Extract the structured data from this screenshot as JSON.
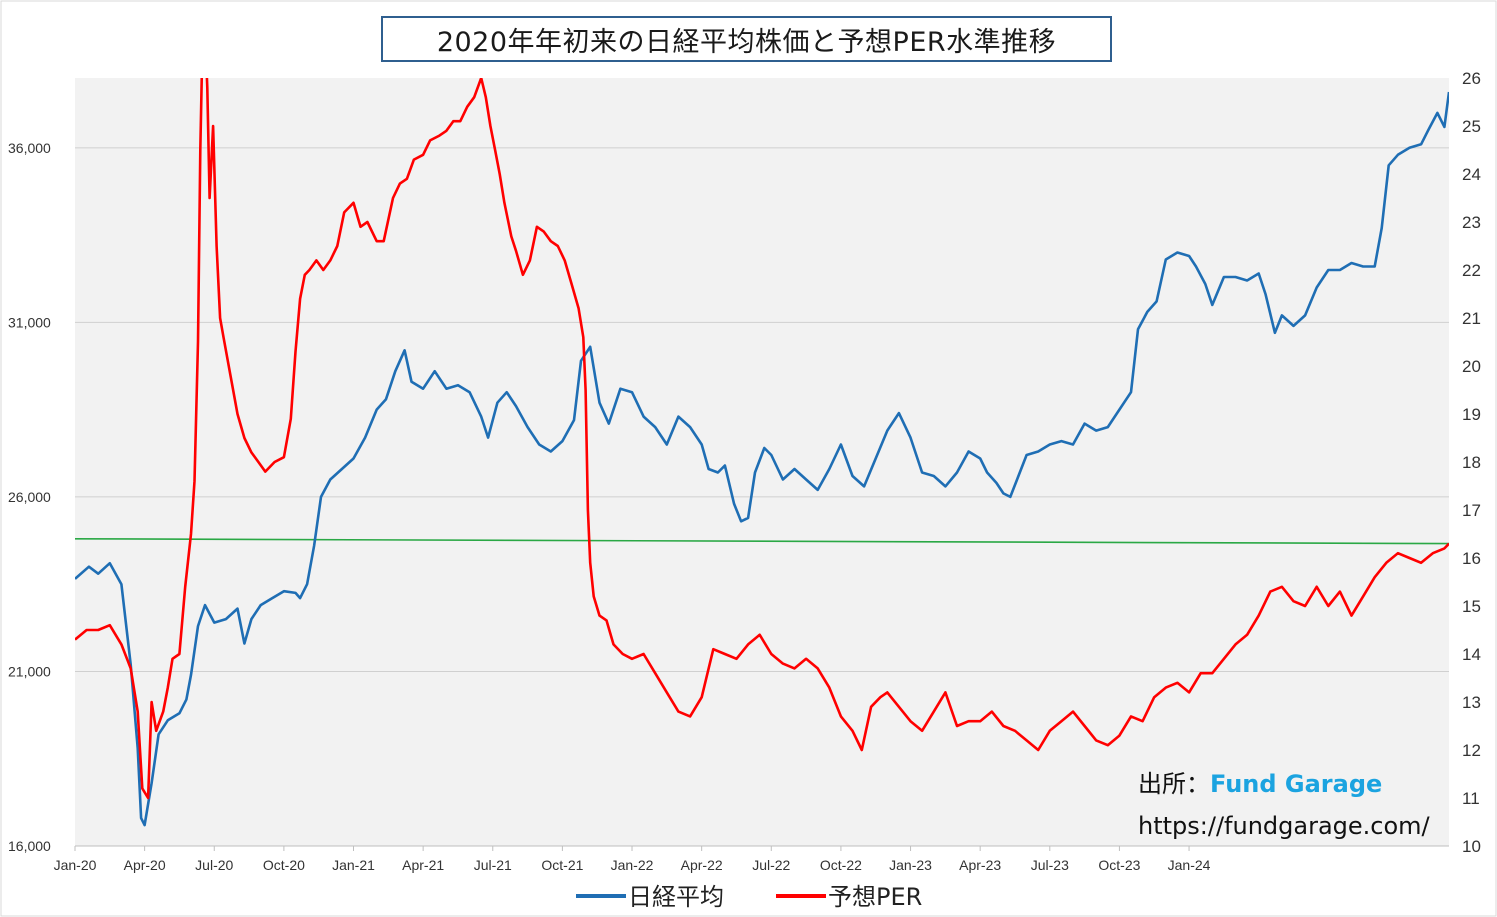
{
  "chart_data": {
    "type": "line",
    "title": "2020年年初来の日経平均株価と予想PER水準推移",
    "x_ticks": [
      "Jan-20",
      "Apr-20",
      "Jul-20",
      "Oct-20",
      "Jan-21",
      "Apr-21",
      "Jul-21",
      "Oct-21",
      "Jan-22",
      "Apr-22",
      "Jul-22",
      "Oct-22",
      "Jan-23",
      "Apr-23",
      "Jul-23",
      "Oct-23",
      "Jan-24"
    ],
    "y_left": {
      "min": 16000,
      "max": 38000,
      "ticks": [
        "16,000",
        "21,000",
        "26,000",
        "31,000",
        "36,000"
      ],
      "tick_values": [
        16000,
        21000,
        26000,
        31000,
        36000
      ]
    },
    "y_right": {
      "min": 10,
      "max": 26,
      "ticks": [
        "10",
        "11",
        "12",
        "13",
        "14",
        "15",
        "16",
        "17",
        "18",
        "19",
        "20",
        "21",
        "22",
        "23",
        "24",
        "25",
        "26"
      ],
      "tick_values": [
        10,
        11,
        12,
        13,
        14,
        15,
        16,
        17,
        18,
        19,
        20,
        21,
        22,
        23,
        24,
        25,
        26
      ]
    },
    "series": [
      {
        "name": "日経平均",
        "axis": "left",
        "color": "#1f6eb4",
        "points": [
          [
            0,
            23650
          ],
          [
            0.6,
            24000
          ],
          [
            1,
            23800
          ],
          [
            1.5,
            24100
          ],
          [
            2,
            23500
          ],
          [
            2.4,
            21200
          ],
          [
            2.7,
            18800
          ],
          [
            2.85,
            16800
          ],
          [
            3,
            16600
          ],
          [
            3.3,
            17800
          ],
          [
            3.6,
            19200
          ],
          [
            4,
            19600
          ],
          [
            4.5,
            19800
          ],
          [
            4.8,
            20200
          ],
          [
            5,
            20900
          ],
          [
            5.3,
            22300
          ],
          [
            5.6,
            22900
          ],
          [
            6,
            22400
          ],
          [
            6.5,
            22500
          ],
          [
            7,
            22800
          ],
          [
            7.3,
            21800
          ],
          [
            7.6,
            22500
          ],
          [
            8,
            22900
          ],
          [
            8.5,
            23100
          ],
          [
            9,
            23300
          ],
          [
            9.5,
            23250
          ],
          [
            9.7,
            23100
          ],
          [
            10,
            23500
          ],
          [
            10.3,
            24600
          ],
          [
            10.6,
            26000
          ],
          [
            11,
            26500
          ],
          [
            11.5,
            26800
          ],
          [
            12,
            27100
          ],
          [
            12.5,
            27700
          ],
          [
            13,
            28500
          ],
          [
            13.4,
            28800
          ],
          [
            13.8,
            29600
          ],
          [
            14.2,
            30200
          ],
          [
            14.5,
            29300
          ],
          [
            15,
            29100
          ],
          [
            15.5,
            29600
          ],
          [
            16,
            29100
          ],
          [
            16.5,
            29200
          ],
          [
            17,
            29000
          ],
          [
            17.5,
            28300
          ],
          [
            17.8,
            27700
          ],
          [
            18.2,
            28700
          ],
          [
            18.6,
            29000
          ],
          [
            19,
            28600
          ],
          [
            19.5,
            28000
          ],
          [
            20,
            27500
          ],
          [
            20.5,
            27300
          ],
          [
            21,
            27600
          ],
          [
            21.5,
            28200
          ],
          [
            21.8,
            29900
          ],
          [
            22.2,
            30300
          ],
          [
            22.6,
            28700
          ],
          [
            23,
            28100
          ],
          [
            23.5,
            29100
          ],
          [
            24,
            29000
          ],
          [
            24.5,
            28300
          ],
          [
            25,
            28000
          ],
          [
            25.5,
            27500
          ],
          [
            26,
            28300
          ],
          [
            26.5,
            28000
          ],
          [
            27,
            27500
          ],
          [
            27.3,
            26800
          ],
          [
            27.7,
            26700
          ],
          [
            28,
            26900
          ],
          [
            28.4,
            25800
          ],
          [
            28.7,
            25300
          ],
          [
            29,
            25400
          ],
          [
            29.3,
            26700
          ],
          [
            29.7,
            27400
          ],
          [
            30,
            27200
          ],
          [
            30.5,
            26500
          ],
          [
            31,
            26800
          ],
          [
            31.5,
            26500
          ],
          [
            32,
            26200
          ],
          [
            32.5,
            26800
          ],
          [
            33,
            27500
          ],
          [
            33.5,
            26600
          ],
          [
            34,
            26300
          ],
          [
            34.5,
            27100
          ],
          [
            35,
            27900
          ],
          [
            35.5,
            28400
          ],
          [
            36,
            27700
          ],
          [
            36.5,
            26700
          ],
          [
            37,
            26600
          ],
          [
            37.5,
            26300
          ],
          [
            38,
            26700
          ],
          [
            38.5,
            27300
          ],
          [
            39,
            27100
          ],
          [
            39.3,
            26700
          ],
          [
            39.7,
            26400
          ],
          [
            40,
            26100
          ],
          [
            40.3,
            26000
          ],
          [
            41,
            27200
          ],
          [
            41.5,
            27300
          ],
          [
            42,
            27500
          ],
          [
            42.5,
            27600
          ],
          [
            43,
            27500
          ],
          [
            43.5,
            28100
          ],
          [
            44,
            27900
          ],
          [
            44.5,
            28000
          ],
          [
            45,
            28500
          ],
          [
            45.5,
            29000
          ],
          [
            45.8,
            30800
          ],
          [
            46.2,
            31300
          ],
          [
            46.6,
            31600
          ],
          [
            47,
            32800
          ],
          [
            47.5,
            33000
          ],
          [
            48,
            32900
          ],
          [
            48.3,
            32600
          ],
          [
            48.7,
            32100
          ],
          [
            49,
            31500
          ],
          [
            49.5,
            32300
          ],
          [
            50,
            32300
          ],
          [
            50.5,
            32200
          ],
          [
            51,
            32400
          ],
          [
            51.3,
            31800
          ],
          [
            51.7,
            30700
          ],
          [
            52,
            31200
          ],
          [
            52.5,
            30900
          ],
          [
            53,
            31200
          ],
          [
            53.5,
            32000
          ],
          [
            54,
            32500
          ],
          [
            54.5,
            32500
          ],
          [
            55,
            32700
          ],
          [
            55.5,
            32600
          ],
          [
            56,
            32600
          ],
          [
            56.3,
            33700
          ],
          [
            56.6,
            35500
          ],
          [
            57,
            35800
          ],
          [
            57.5,
            36000
          ],
          [
            58,
            36100
          ],
          [
            58.3,
            36500
          ],
          [
            58.7,
            37000
          ],
          [
            59,
            36600
          ],
          [
            59.2,
            37600
          ]
        ]
      },
      {
        "name": "予想PER",
        "axis": "right",
        "color": "#ff0000",
        "points": [
          [
            0,
            14.3
          ],
          [
            0.5,
            14.5
          ],
          [
            1,
            14.5
          ],
          [
            1.5,
            14.6
          ],
          [
            2,
            14.2
          ],
          [
            2.4,
            13.7
          ],
          [
            2.7,
            12.8
          ],
          [
            2.9,
            11.2
          ],
          [
            3.15,
            11.0
          ],
          [
            3.3,
            13.0
          ],
          [
            3.5,
            12.4
          ],
          [
            3.8,
            12.8
          ],
          [
            4,
            13.3
          ],
          [
            4.2,
            13.9
          ],
          [
            4.5,
            14.0
          ],
          [
            4.75,
            15.4
          ],
          [
            5,
            16.5
          ],
          [
            5.15,
            17.6
          ],
          [
            5.3,
            20.5
          ],
          [
            5.4,
            24.5
          ],
          [
            5.5,
            27.0
          ],
          [
            5.6,
            27.0
          ],
          [
            5.7,
            25.8
          ],
          [
            5.8,
            23.5
          ],
          [
            5.95,
            25.0
          ],
          [
            6.1,
            22.5
          ],
          [
            6.25,
            21.0
          ],
          [
            6.4,
            20.6
          ],
          [
            6.7,
            19.8
          ],
          [
            7,
            19.0
          ],
          [
            7.3,
            18.5
          ],
          [
            7.6,
            18.2
          ],
          [
            7.9,
            18.0
          ],
          [
            8.2,
            17.8
          ],
          [
            8.6,
            18.0
          ],
          [
            9,
            18.1
          ],
          [
            9.3,
            18.9
          ],
          [
            9.5,
            20.3
          ],
          [
            9.7,
            21.4
          ],
          [
            9.9,
            21.9
          ],
          [
            10.1,
            22.0
          ],
          [
            10.4,
            22.2
          ],
          [
            10.7,
            22.0
          ],
          [
            11,
            22.2
          ],
          [
            11.3,
            22.5
          ],
          [
            11.6,
            23.2
          ],
          [
            12,
            23.4
          ],
          [
            12.3,
            22.9
          ],
          [
            12.6,
            23.0
          ],
          [
            13,
            22.6
          ],
          [
            13.3,
            22.6
          ],
          [
            13.7,
            23.5
          ],
          [
            14,
            23.8
          ],
          [
            14.3,
            23.9
          ],
          [
            14.6,
            24.3
          ],
          [
            15,
            24.4
          ],
          [
            15.3,
            24.7
          ],
          [
            15.7,
            24.8
          ],
          [
            16,
            24.9
          ],
          [
            16.3,
            25.1
          ],
          [
            16.6,
            25.1
          ],
          [
            16.9,
            25.4
          ],
          [
            17.2,
            25.6
          ],
          [
            17.5,
            26.0
          ],
          [
            17.7,
            25.6
          ],
          [
            17.9,
            25.0
          ],
          [
            18.1,
            24.5
          ],
          [
            18.3,
            24.0
          ],
          [
            18.5,
            23.4
          ],
          [
            18.8,
            22.7
          ],
          [
            19,
            22.4
          ],
          [
            19.3,
            21.9
          ],
          [
            19.6,
            22.2
          ],
          [
            19.9,
            22.9
          ],
          [
            20.2,
            22.8
          ],
          [
            20.5,
            22.6
          ],
          [
            20.8,
            22.5
          ],
          [
            21.1,
            22.2
          ],
          [
            21.4,
            21.7
          ],
          [
            21.7,
            21.2
          ],
          [
            21.9,
            20.6
          ],
          [
            22.0,
            19.5
          ],
          [
            22.1,
            17.0
          ],
          [
            22.2,
            15.9
          ],
          [
            22.35,
            15.2
          ],
          [
            22.6,
            14.8
          ],
          [
            22.9,
            14.7
          ],
          [
            23.2,
            14.2
          ],
          [
            23.6,
            14.0
          ],
          [
            24,
            13.9
          ],
          [
            24.5,
            14.0
          ],
          [
            25,
            13.6
          ],
          [
            25.5,
            13.2
          ],
          [
            26,
            12.8
          ],
          [
            26.5,
            12.7
          ],
          [
            27,
            13.1
          ],
          [
            27.5,
            14.1
          ],
          [
            28,
            14.0
          ],
          [
            28.5,
            13.9
          ],
          [
            29,
            14.2
          ],
          [
            29.5,
            14.4
          ],
          [
            30,
            14.0
          ],
          [
            30.5,
            13.8
          ],
          [
            31,
            13.7
          ],
          [
            31.5,
            13.9
          ],
          [
            32,
            13.7
          ],
          [
            32.5,
            13.3
          ],
          [
            33,
            12.7
          ],
          [
            33.5,
            12.4
          ],
          [
            33.9,
            12.0
          ],
          [
            34.3,
            12.9
          ],
          [
            34.7,
            13.1
          ],
          [
            35,
            13.2
          ],
          [
            35.5,
            12.9
          ],
          [
            36,
            12.6
          ],
          [
            36.5,
            12.4
          ],
          [
            37,
            12.8
          ],
          [
            37.5,
            13.2
          ],
          [
            38,
            12.5
          ],
          [
            38.5,
            12.6
          ],
          [
            39,
            12.6
          ],
          [
            39.5,
            12.8
          ],
          [
            40,
            12.5
          ],
          [
            40.5,
            12.4
          ],
          [
            41,
            12.2
          ],
          [
            41.5,
            12.0
          ],
          [
            42,
            12.4
          ],
          [
            42.5,
            12.6
          ],
          [
            43,
            12.8
          ],
          [
            43.5,
            12.5
          ],
          [
            44,
            12.2
          ],
          [
            44.5,
            12.1
          ],
          [
            45,
            12.3
          ],
          [
            45.5,
            12.7
          ],
          [
            46,
            12.6
          ],
          [
            46.5,
            13.1
          ],
          [
            47,
            13.3
          ],
          [
            47.5,
            13.4
          ],
          [
            48,
            13.2
          ],
          [
            48.5,
            13.6
          ],
          [
            49,
            13.6
          ],
          [
            49.5,
            13.9
          ],
          [
            50,
            14.2
          ],
          [
            50.5,
            14.4
          ],
          [
            51,
            14.8
          ],
          [
            51.5,
            15.3
          ],
          [
            52,
            15.4
          ],
          [
            52.5,
            15.1
          ],
          [
            53,
            15.0
          ],
          [
            53.5,
            15.4
          ],
          [
            54,
            15.0
          ],
          [
            54.5,
            15.3
          ],
          [
            55,
            14.8
          ],
          [
            55.5,
            15.2
          ],
          [
            56,
            15.6
          ],
          [
            56.5,
            15.9
          ],
          [
            57,
            16.1
          ],
          [
            57.5,
            16.0
          ],
          [
            58,
            15.9
          ],
          [
            58.5,
            16.1
          ],
          [
            59,
            16.2
          ],
          [
            59.2,
            16.3
          ]
        ]
      },
      {
        "name": "",
        "axis": "right",
        "color": "#2aa845",
        "points": [
          [
            0,
            16.4
          ],
          [
            59.2,
            16.3
          ]
        ]
      }
    ],
    "x_range": [
      0,
      59.2
    ],
    "grid": true,
    "legend_position": "bottom-center",
    "source": {
      "prefix": "出所：",
      "brand": "Fund Garage",
      "brand_color": "#1ba3e0",
      "url": "https://fundgarage.com/"
    },
    "plot_background": "#f2f2f2"
  }
}
